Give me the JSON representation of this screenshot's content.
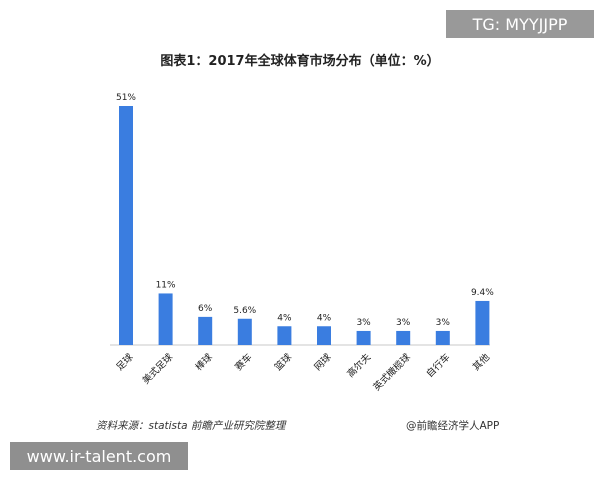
{
  "overlay": {
    "tg_text": "TG: MYYJJPP",
    "url_text": "www.ir-talent.com"
  },
  "colors": {
    "bar": "#3a7de0",
    "axis": "#c8c8c8",
    "text": "#222222"
  },
  "chart_data": {
    "type": "bar",
    "title": "图表1：2017年全球体育市场分布（单位：%）",
    "categories": [
      "足球",
      "美式足球",
      "棒球",
      "赛车",
      "篮球",
      "网球",
      "高尔夫",
      "英式橄榄球",
      "自行车",
      "其他"
    ],
    "values": [
      51,
      11,
      6,
      5.6,
      4,
      4,
      3,
      3,
      3,
      9.4
    ],
    "value_labels": [
      "51%",
      "11%",
      "6%",
      "5.6%",
      "4%",
      "4%",
      "3%",
      "3%",
      "3%",
      "9.4%"
    ],
    "xlabel": "",
    "ylabel": "",
    "ylim": [
      0,
      51
    ],
    "grid": false,
    "legend": "none"
  },
  "footer": {
    "source": "资料来源：statista  前瞻产业研究院整理",
    "brand": "@前瞻经济学人APP"
  }
}
